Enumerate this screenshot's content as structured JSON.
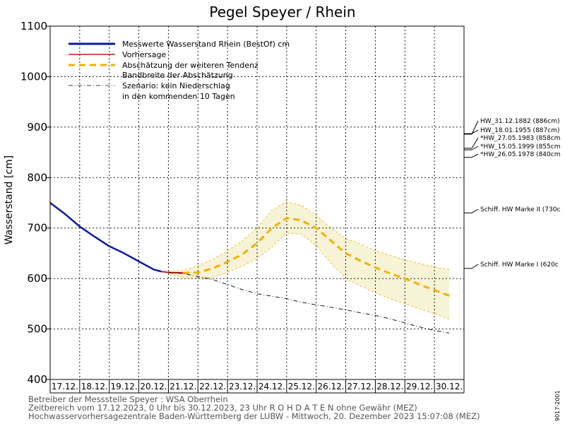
{
  "chart_data": {
    "type": "line",
    "title": "Pegel Speyer / Rhein",
    "ylabel": "Wasserstand [cm]",
    "ylim": [
      400,
      1100
    ],
    "yticks": [
      400,
      500,
      600,
      700,
      800,
      900,
      1000,
      1100
    ],
    "x_range": [
      "2023-12-17T00:00",
      "2023-12-31T00:00"
    ],
    "x_tick_labels": [
      "17.12.",
      "18.12.",
      "19.12.",
      "20.12.",
      "21.12.",
      "22.12.",
      "23.12.",
      "24.12.",
      "25.12.",
      "26.12.",
      "27.12.",
      "28.12.",
      "29.12.",
      "30.12."
    ],
    "grid": true,
    "legend_position": "top-left",
    "legend": [
      "Messwerte Wasserstand Rhein (BestOf)  cm",
      "Vorhersage",
      "Abschätzung der weiteren Tendenz",
      "Bandbreite der Abschätzung",
      "Szenario: kein Niederschlag",
      "in den kommenden 10 Tagen"
    ],
    "series": [
      {
        "name": "Messwerte Wasserstand Rhein (BestOf)  cm",
        "color": "#0a1aa0",
        "points": [
          [
            "2023-12-17T00:00",
            750
          ],
          [
            "2023-12-17T12:00",
            728
          ],
          [
            "2023-12-18T00:00",
            703
          ],
          [
            "2023-12-18T12:00",
            683
          ],
          [
            "2023-12-19T00:00",
            664
          ],
          [
            "2023-12-19T12:00",
            650
          ],
          [
            "2023-12-20T00:00",
            634
          ],
          [
            "2023-12-20T12:00",
            618
          ],
          [
            "2023-12-20T18:00",
            614
          ]
        ]
      },
      {
        "name": "Vorhersage",
        "color": "#d01010",
        "points": [
          [
            "2023-12-20T18:00",
            614
          ],
          [
            "2023-12-21T00:00",
            612
          ],
          [
            "2023-12-21T12:00",
            611
          ]
        ]
      },
      {
        "name": "Abschätzung der weiteren Tendenz",
        "color": "#f2b000",
        "points": [
          [
            "2023-12-21T12:00",
            611
          ],
          [
            "2023-12-22T00:00",
            612
          ],
          [
            "2023-12-22T12:00",
            620
          ],
          [
            "2023-12-23T00:00",
            633
          ],
          [
            "2023-12-23T12:00",
            648
          ],
          [
            "2023-12-24T00:00",
            670
          ],
          [
            "2023-12-24T12:00",
            700
          ],
          [
            "2023-12-25T00:00",
            720
          ],
          [
            "2023-12-25T12:00",
            715
          ],
          [
            "2023-12-26T00:00",
            700
          ],
          [
            "2023-12-26T12:00",
            675
          ],
          [
            "2023-12-27T00:00",
            650
          ],
          [
            "2023-12-27T12:00",
            635
          ],
          [
            "2023-12-28T00:00",
            622
          ],
          [
            "2023-12-28T12:00",
            610
          ],
          [
            "2023-12-29T00:00",
            600
          ],
          [
            "2023-12-29T12:00",
            588
          ],
          [
            "2023-12-30T00:00",
            577
          ],
          [
            "2023-12-30T12:00",
            566
          ]
        ]
      },
      {
        "name": "Bandbreite der Abschätzung",
        "color": "#f2b000",
        "upper": [
          [
            "2023-12-21T00:00",
            614
          ],
          [
            "2023-12-21T12:00",
            616
          ],
          [
            "2023-12-22T00:00",
            625
          ],
          [
            "2023-12-22T12:00",
            638
          ],
          [
            "2023-12-23T00:00",
            655
          ],
          [
            "2023-12-23T12:00",
            675
          ],
          [
            "2023-12-24T00:00",
            700
          ],
          [
            "2023-12-24T12:00",
            735
          ],
          [
            "2023-12-25T00:00",
            752
          ],
          [
            "2023-12-25T12:00",
            745
          ],
          [
            "2023-12-26T00:00",
            725
          ],
          [
            "2023-12-26T12:00",
            700
          ],
          [
            "2023-12-27T00:00",
            680
          ],
          [
            "2023-12-27T12:00",
            668
          ],
          [
            "2023-12-28T00:00",
            655
          ],
          [
            "2023-12-28T12:00",
            646
          ],
          [
            "2023-12-29T00:00",
            637
          ],
          [
            "2023-12-29T12:00",
            630
          ],
          [
            "2023-12-30T00:00",
            623
          ],
          [
            "2023-12-30T12:00",
            618
          ]
        ],
        "lower": [
          [
            "2023-12-21T00:00",
            608
          ],
          [
            "2023-12-21T12:00",
            603
          ],
          [
            "2023-12-22T00:00",
            600
          ],
          [
            "2023-12-22T12:00",
            603
          ],
          [
            "2023-12-23T00:00",
            612
          ],
          [
            "2023-12-23T12:00",
            625
          ],
          [
            "2023-12-24T00:00",
            640
          ],
          [
            "2023-12-24T12:00",
            662
          ],
          [
            "2023-12-25T00:00",
            690
          ],
          [
            "2023-12-25T12:00",
            688
          ],
          [
            "2023-12-26T00:00",
            665
          ],
          [
            "2023-12-26T12:00",
            630
          ],
          [
            "2023-12-27T00:00",
            600
          ],
          [
            "2023-12-27T12:00",
            585
          ],
          [
            "2023-12-28T00:00",
            572
          ],
          [
            "2023-12-28T12:00",
            560
          ],
          [
            "2023-12-29T00:00",
            550
          ],
          [
            "2023-12-29T12:00",
            540
          ],
          [
            "2023-12-30T00:00",
            530
          ],
          [
            "2023-12-30T12:00",
            520
          ]
        ]
      },
      {
        "name": "Szenario: kein Niederschlag",
        "color": "#000000",
        "points": [
          [
            "2023-12-21T00:00",
            612
          ],
          [
            "2023-12-21T12:00",
            610
          ],
          [
            "2023-12-22T00:00",
            604
          ],
          [
            "2023-12-22T12:00",
            598
          ],
          [
            "2023-12-23T00:00",
            588
          ],
          [
            "2023-12-23T12:00",
            578
          ],
          [
            "2023-12-24T00:00",
            570
          ],
          [
            "2023-12-24T12:00",
            565
          ],
          [
            "2023-12-25T00:00",
            560
          ],
          [
            "2023-12-25T12:00",
            553
          ],
          [
            "2023-12-26T00:00",
            548
          ],
          [
            "2023-12-26T12:00",
            543
          ],
          [
            "2023-12-27T00:00",
            538
          ],
          [
            "2023-12-27T12:00",
            532
          ],
          [
            "2023-12-28T00:00",
            527
          ],
          [
            "2023-12-28T12:00",
            520
          ],
          [
            "2023-12-29T00:00",
            512
          ],
          [
            "2023-12-29T12:00",
            504
          ],
          [
            "2023-12-30T00:00",
            497
          ],
          [
            "2023-12-30T12:00",
            492
          ]
        ]
      }
    ],
    "reference_lines": [
      {
        "label": "HW_31.12.1882 (886cm)",
        "value": 886
      },
      {
        "label": "HW_18.01.1955 (887cm)",
        "value": 887
      },
      {
        "label": "*HW_27.05.1983 (858cm",
        "value": 858
      },
      {
        "label": "*HW_15.05.1999 (855cm",
        "value": 855
      },
      {
        "label": "*HW_26.05.1978 (840cm",
        "value": 840
      },
      {
        "label": "Schiff. HW Marke II (730c",
        "value": 730
      },
      {
        "label": "Schiff. HW Marke I (620c",
        "value": 620
      }
    ]
  },
  "footer": {
    "line1": "Betreiber der Messstelle Speyer : WSA Oberrhein",
    "line2": "Zeitbereich vom 17.12.2023, 0 Uhr bis 30.12.2023, 23 Uhr   R O H D A T E N ohne Gewähr (MEZ)",
    "line3": "Hochwasservorhersagezentrale Baden-Württemberg der LUBW - Mittwoch, 20. Dezember 2023 15:07:08 (MEZ)"
  },
  "side_code": "9017-2001",
  "colors": {
    "measured": "#0a1aa0",
    "forecast": "#d01010",
    "tendency": "#f2b000",
    "band_fill": "#f7f3d6",
    "grid": "#000000"
  }
}
